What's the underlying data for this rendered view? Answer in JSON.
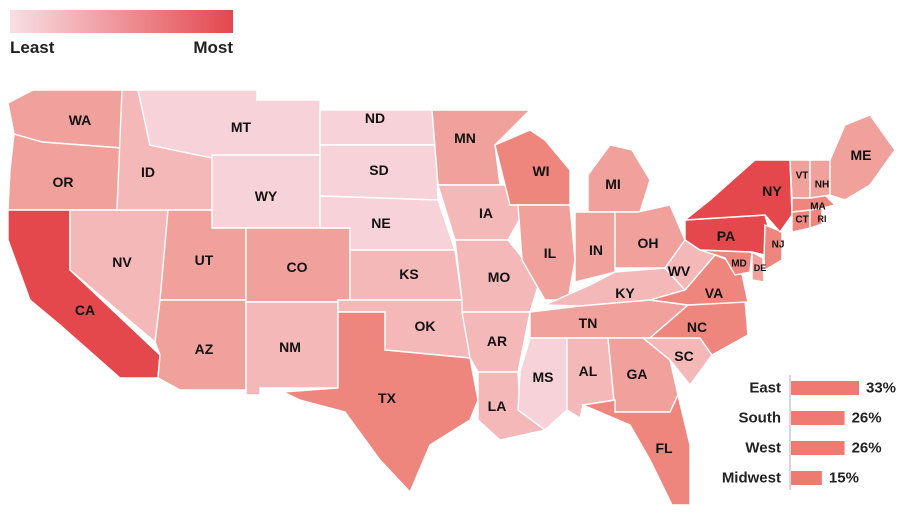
{
  "legend": {
    "min_label": "Least",
    "max_label": "Most",
    "color_min": "#f8dfe3",
    "color_max": "#e3474d"
  },
  "colors": {
    "level_1": "#f7d3d9",
    "level_2": "#f4b8b8",
    "level_3": "#f1a19c",
    "level_4": "#ef867e",
    "level_5": "#ec6a63",
    "level_6": "#e4484d",
    "bar": "#ef7a72"
  },
  "states": [
    {
      "code": "WA",
      "level": 3
    },
    {
      "code": "OR",
      "level": 3
    },
    {
      "code": "CA",
      "level": 6
    },
    {
      "code": "NV",
      "level": 2
    },
    {
      "code": "ID",
      "level": 2
    },
    {
      "code": "MT",
      "level": 1
    },
    {
      "code": "WY",
      "level": 1
    },
    {
      "code": "UT",
      "level": 3
    },
    {
      "code": "AZ",
      "level": 3
    },
    {
      "code": "CO",
      "level": 3
    },
    {
      "code": "NM",
      "level": 2
    },
    {
      "code": "ND",
      "level": 1
    },
    {
      "code": "SD",
      "level": 1
    },
    {
      "code": "NE",
      "level": 1
    },
    {
      "code": "KS",
      "level": 2
    },
    {
      "code": "OK",
      "level": 2
    },
    {
      "code": "TX",
      "level": 4
    },
    {
      "code": "MN",
      "level": 3
    },
    {
      "code": "IA",
      "level": 2
    },
    {
      "code": "MO",
      "level": 2
    },
    {
      "code": "AR",
      "level": 2
    },
    {
      "code": "LA",
      "level": 2
    },
    {
      "code": "WI",
      "level": 4
    },
    {
      "code": "IL",
      "level": 3
    },
    {
      "code": "MI",
      "level": 3
    },
    {
      "code": "IN",
      "level": 3
    },
    {
      "code": "OH",
      "level": 3
    },
    {
      "code": "KY",
      "level": 2
    },
    {
      "code": "TN",
      "level": 3
    },
    {
      "code": "MS",
      "level": 1
    },
    {
      "code": "AL",
      "level": 2
    },
    {
      "code": "GA",
      "level": 3
    },
    {
      "code": "FL",
      "level": 4
    },
    {
      "code": "SC",
      "level": 2
    },
    {
      "code": "NC",
      "level": 4
    },
    {
      "code": "VA",
      "level": 4
    },
    {
      "code": "WV",
      "level": 2
    },
    {
      "code": "MD",
      "level": 4
    },
    {
      "code": "DE",
      "level": 3
    },
    {
      "code": "PA",
      "level": 6
    },
    {
      "code": "NJ",
      "level": 4
    },
    {
      "code": "NY",
      "level": 6
    },
    {
      "code": "CT",
      "level": 4
    },
    {
      "code": "RI",
      "level": 4
    },
    {
      "code": "MA",
      "level": 4
    },
    {
      "code": "VT",
      "level": 3
    },
    {
      "code": "NH",
      "level": 3
    },
    {
      "code": "ME",
      "level": 3
    }
  ],
  "chart_data": {
    "type": "bar",
    "categories": [
      "East",
      "South",
      "West",
      "Midwest"
    ],
    "values": [
      33,
      26,
      26,
      15
    ],
    "value_labels": [
      "33%",
      "26%",
      "26%",
      "15%"
    ]
  }
}
